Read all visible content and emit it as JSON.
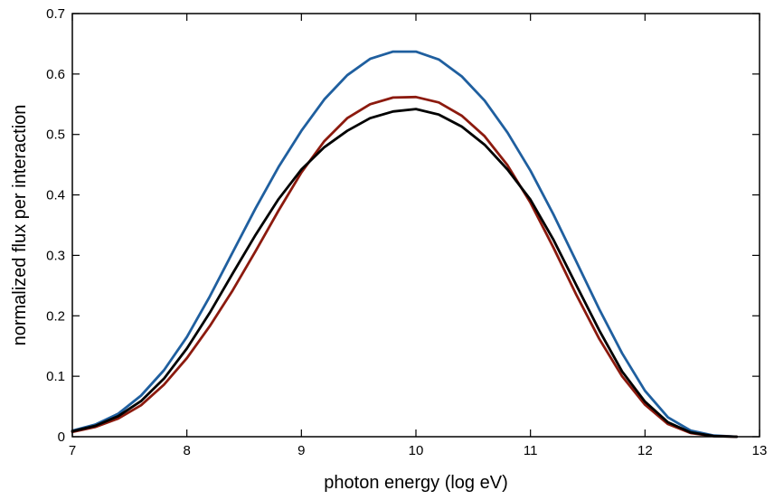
{
  "chart_data": {
    "type": "line",
    "title": "",
    "xlabel": "photon energy (log eV)",
    "ylabel": "normalized flux per interaction",
    "xlim": [
      7,
      13
    ],
    "ylim": [
      0,
      0.7
    ],
    "xticks": [
      7,
      8,
      9,
      10,
      11,
      12,
      13
    ],
    "yticks": [
      0,
      0.1,
      0.2,
      0.3,
      0.4,
      0.5,
      0.6,
      0.7
    ],
    "xtick_labels": [
      "7",
      "8",
      "9",
      "10",
      "11",
      "12",
      "13"
    ],
    "ytick_labels": [
      "0",
      "0.1",
      "0.2",
      "0.3",
      "0.4",
      "0.5",
      "0.6",
      "0.7"
    ],
    "grid": false,
    "legend": "none",
    "series": [
      {
        "color": "#1f5f9f",
        "x": [
          7.0,
          7.2,
          7.4,
          7.6,
          7.8,
          8.0,
          8.2,
          8.4,
          8.6,
          8.8,
          9.0,
          9.2,
          9.4,
          9.6,
          9.8,
          10.0,
          10.2,
          10.4,
          10.6,
          10.8,
          11.0,
          11.2,
          11.4,
          11.6,
          11.8,
          12.0,
          12.2,
          12.4,
          12.6,
          12.8
        ],
        "y": [
          0.01,
          0.02,
          0.038,
          0.068,
          0.11,
          0.165,
          0.232,
          0.305,
          0.378,
          0.446,
          0.506,
          0.558,
          0.598,
          0.625,
          0.637,
          0.637,
          0.624,
          0.596,
          0.556,
          0.503,
          0.44,
          0.368,
          0.29,
          0.211,
          0.138,
          0.076,
          0.032,
          0.01,
          0.002,
          0.0
        ]
      },
      {
        "color": "#8c1a0e",
        "x": [
          7.0,
          7.2,
          7.4,
          7.6,
          7.8,
          8.0,
          8.2,
          8.4,
          8.6,
          8.8,
          9.0,
          9.2,
          9.4,
          9.6,
          9.8,
          10.0,
          10.2,
          10.4,
          10.6,
          10.8,
          11.0,
          11.2,
          11.4,
          11.6,
          11.8,
          12.0,
          12.2,
          12.4,
          12.6,
          12.8
        ],
        "y": [
          0.008,
          0.016,
          0.03,
          0.052,
          0.086,
          0.13,
          0.183,
          0.242,
          0.307,
          0.374,
          0.437,
          0.489,
          0.527,
          0.55,
          0.561,
          0.562,
          0.553,
          0.531,
          0.497,
          0.449,
          0.387,
          0.313,
          0.235,
          0.162,
          0.1,
          0.053,
          0.021,
          0.006,
          0.001,
          0.0
        ]
      },
      {
        "color": "#000000",
        "x": [
          7.0,
          7.2,
          7.4,
          7.6,
          7.8,
          8.0,
          8.2,
          8.4,
          8.6,
          8.8,
          9.0,
          9.2,
          9.4,
          9.6,
          9.8,
          10.0,
          10.2,
          10.4,
          10.6,
          10.8,
          11.0,
          11.2,
          11.4,
          11.6,
          11.8,
          12.0,
          12.2,
          12.4,
          12.6,
          12.8
        ],
        "y": [
          0.009,
          0.018,
          0.034,
          0.059,
          0.096,
          0.146,
          0.205,
          0.27,
          0.334,
          0.393,
          0.442,
          0.479,
          0.506,
          0.527,
          0.538,
          0.542,
          0.533,
          0.513,
          0.483,
          0.442,
          0.392,
          0.326,
          0.251,
          0.176,
          0.108,
          0.058,
          0.024,
          0.007,
          0.001,
          0.0
        ]
      }
    ]
  }
}
